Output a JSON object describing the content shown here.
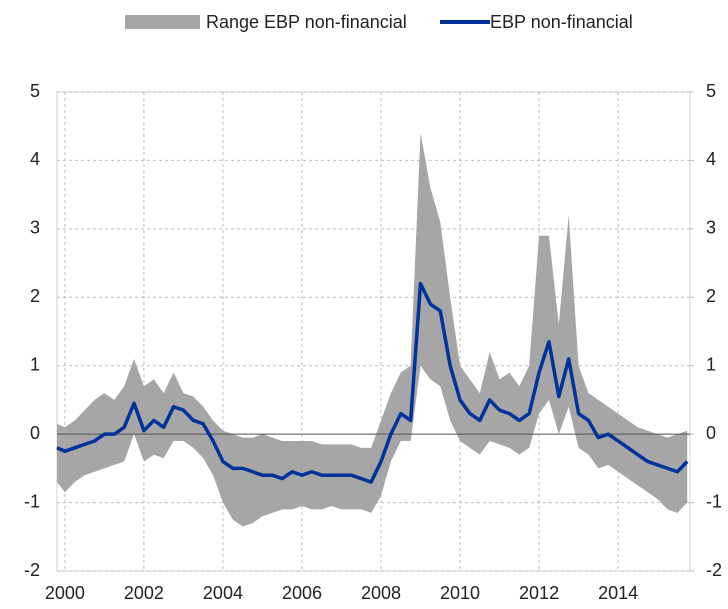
{
  "chart_data": {
    "type": "line",
    "x": [
      1999.8,
      2000.0,
      2000.25,
      2000.5,
      2000.75,
      2001.0,
      2001.25,
      2001.5,
      2001.75,
      2002.0,
      2002.25,
      2002.5,
      2002.75,
      2003.0,
      2003.25,
      2003.5,
      2003.75,
      2004.0,
      2004.25,
      2004.5,
      2004.75,
      2005.0,
      2005.25,
      2005.5,
      2005.75,
      2006.0,
      2006.25,
      2006.5,
      2006.75,
      2007.0,
      2007.25,
      2007.5,
      2007.75,
      2008.0,
      2008.25,
      2008.5,
      2008.75,
      2009.0,
      2009.25,
      2009.5,
      2009.75,
      2010.0,
      2010.25,
      2010.5,
      2010.75,
      2011.0,
      2011.25,
      2011.5,
      2011.75,
      2012.0,
      2012.25,
      2012.5,
      2012.75,
      2013.0,
      2013.25,
      2013.5,
      2013.75,
      2014.0,
      2014.25,
      2014.5,
      2014.75,
      2015.0,
      2015.25,
      2015.5,
      2015.75
    ],
    "series": [
      {
        "name": "Range EBP non-financial",
        "color": "#a6a6a6",
        "lower": [
          -0.7,
          -0.85,
          -0.7,
          -0.6,
          -0.55,
          -0.5,
          -0.45,
          -0.4,
          0.0,
          -0.4,
          -0.3,
          -0.35,
          -0.1,
          -0.1,
          -0.2,
          -0.35,
          -0.6,
          -1.0,
          -1.25,
          -1.35,
          -1.3,
          -1.2,
          -1.15,
          -1.1,
          -1.1,
          -1.05,
          -1.1,
          -1.1,
          -1.05,
          -1.1,
          -1.1,
          -1.1,
          -1.15,
          -0.9,
          -0.4,
          -0.1,
          -0.1,
          1.0,
          0.8,
          0.7,
          0.2,
          -0.1,
          -0.2,
          -0.3,
          -0.1,
          -0.15,
          -0.2,
          -0.3,
          -0.2,
          0.3,
          0.5,
          0.0,
          0.4,
          -0.2,
          -0.3,
          -0.5,
          -0.45,
          -0.55,
          -0.65,
          -0.75,
          -0.85,
          -0.95,
          -1.1,
          -1.15,
          -1.0
        ],
        "upper": [
          0.15,
          0.1,
          0.2,
          0.35,
          0.5,
          0.6,
          0.5,
          0.7,
          1.1,
          0.7,
          0.8,
          0.6,
          0.9,
          0.6,
          0.55,
          0.4,
          0.2,
          0.05,
          0.0,
          -0.05,
          -0.05,
          0.0,
          -0.05,
          -0.1,
          -0.1,
          -0.1,
          -0.1,
          -0.15,
          -0.15,
          -0.15,
          -0.15,
          -0.2,
          -0.2,
          0.2,
          0.6,
          0.9,
          1.0,
          4.4,
          3.6,
          3.1,
          2.0,
          1.0,
          0.8,
          0.6,
          1.2,
          0.8,
          0.9,
          0.7,
          1.0,
          2.9,
          2.9,
          1.6,
          3.2,
          1.0,
          0.6,
          0.5,
          0.4,
          0.3,
          0.2,
          0.1,
          0.05,
          0.0,
          -0.05,
          0.0,
          0.05
        ]
      },
      {
        "name": "EBP non-financial",
        "color": "#003299",
        "values": [
          -0.2,
          -0.25,
          -0.2,
          -0.15,
          -0.1,
          0.0,
          0.0,
          0.1,
          0.45,
          0.05,
          0.2,
          0.1,
          0.4,
          0.35,
          0.2,
          0.15,
          -0.1,
          -0.4,
          -0.5,
          -0.5,
          -0.55,
          -0.6,
          -0.6,
          -0.65,
          -0.55,
          -0.6,
          -0.55,
          -0.6,
          -0.6,
          -0.6,
          -0.6,
          -0.65,
          -0.7,
          -0.4,
          0.0,
          0.3,
          0.2,
          2.2,
          1.9,
          1.8,
          1.0,
          0.5,
          0.3,
          0.2,
          0.5,
          0.35,
          0.3,
          0.2,
          0.3,
          0.9,
          1.35,
          0.55,
          1.1,
          0.3,
          0.2,
          -0.05,
          0.0,
          -0.1,
          -0.2,
          -0.3,
          -0.4,
          -0.45,
          -0.5,
          -0.55,
          -0.4
        ]
      }
    ],
    "xlim": [
      1999.8,
      2015.82
    ],
    "xticks": [
      2000,
      2002,
      2004,
      2006,
      2008,
      2010,
      2012,
      2014
    ],
    "ylim": [
      -2,
      5
    ],
    "yticks": [
      -2,
      -1,
      0,
      1,
      2,
      3,
      4,
      5
    ],
    "y2lim": [
      -2,
      5
    ],
    "y2ticks": [
      -2,
      -1,
      0,
      1,
      2,
      3,
      4,
      5
    ],
    "grid": true,
    "legend": "top"
  }
}
